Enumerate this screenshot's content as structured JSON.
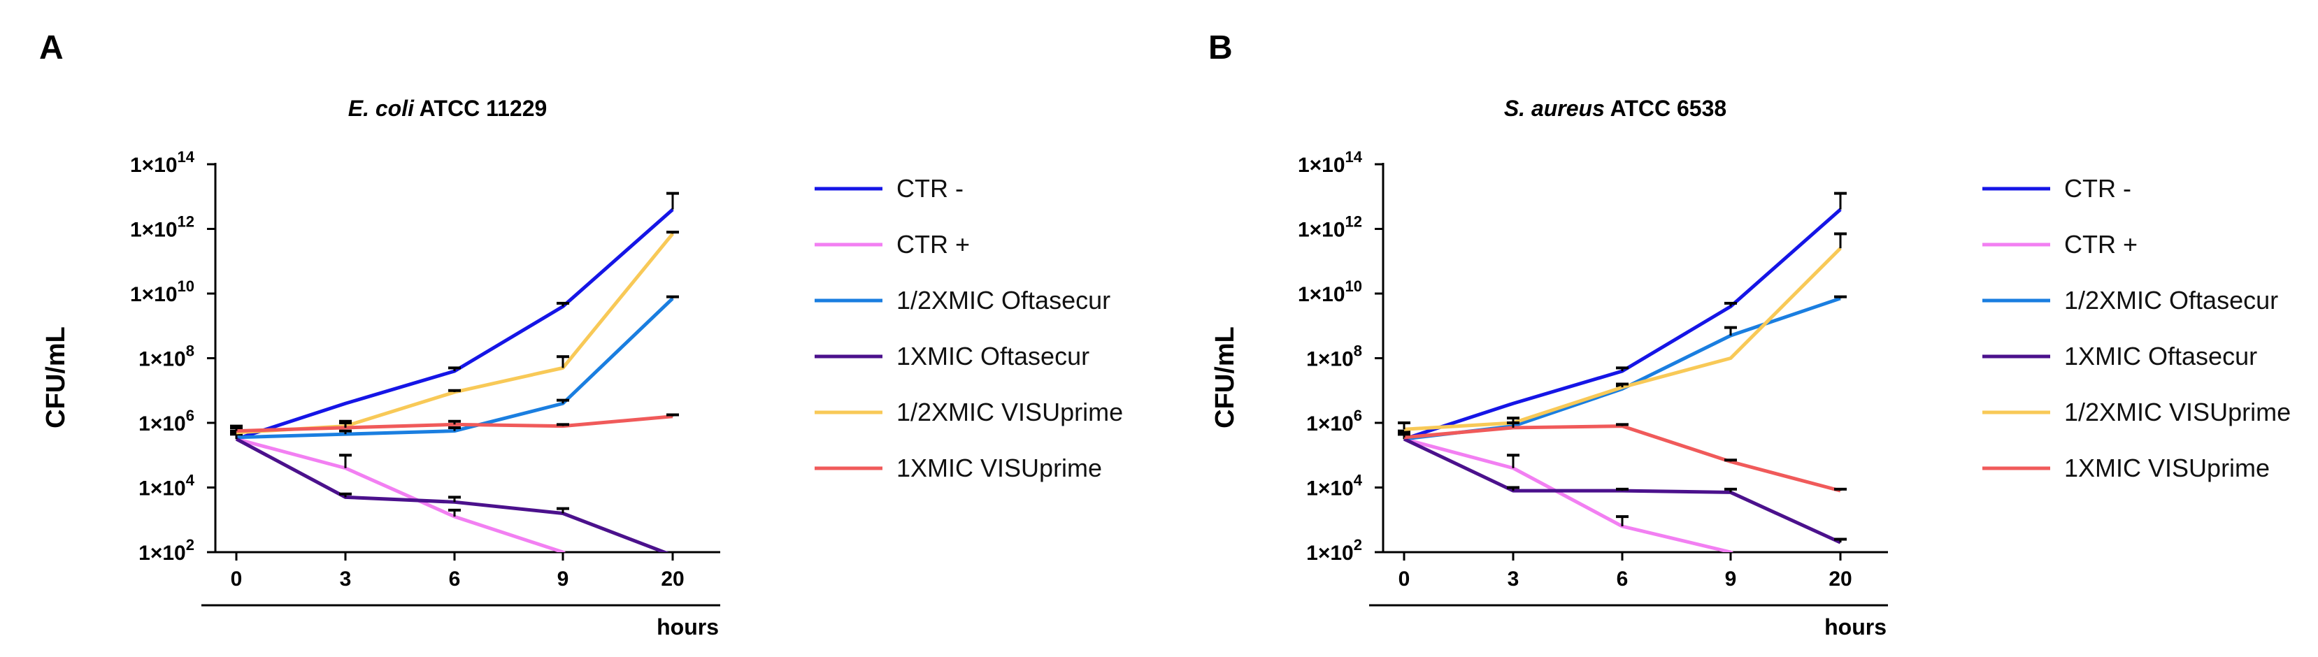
{
  "chart_data": [
    {
      "panel": "A",
      "type": "line",
      "title_italic": "E. coli",
      "title_rest": " ATCC 11229",
      "ylabel": "CFU/mL",
      "xlabel": "hours",
      "yscale": "log10",
      "ylim_exp": [
        2,
        14
      ],
      "yticks": [
        "1×10",
        "1×10",
        "1×10",
        "1×10",
        "1×10",
        "1×10",
        "1×10"
      ],
      "ytick_exps": [
        "2",
        "4",
        "6",
        "8",
        "10",
        "12",
        "14"
      ],
      "ytick_values": [
        2,
        4,
        6,
        8,
        10,
        12,
        14
      ],
      "categories": [
        "0",
        "3",
        "6",
        "9",
        "20"
      ],
      "series": [
        {
          "name": "CTR -",
          "color": "#1515e6",
          "log10": [
            5.5,
            6.6,
            7.6,
            9.6,
            12.6
          ],
          "err": [
            0.25,
            0,
            0.1,
            0.1,
            0.5
          ]
        },
        {
          "name": "CTR +",
          "color": "#f27ff2",
          "log10": [
            5.5,
            4.6,
            3.1,
            2.0,
            null
          ],
          "err": [
            0.2,
            0.4,
            0.2,
            0,
            0
          ]
        },
        {
          "name": "1/2XMIC Oftasecur",
          "color": "#1a7ee0",
          "log10": [
            5.55,
            5.65,
            5.75,
            6.6,
            9.85
          ],
          "err": [
            0.15,
            0.1,
            0.1,
            0.1,
            0.05
          ]
        },
        {
          "name": "1XMIC Oftasecur",
          "color": "#4b118c",
          "log10": [
            5.5,
            3.7,
            3.55,
            3.2,
            1.9
          ],
          "err": [
            0.15,
            0.1,
            0.15,
            0.15,
            0
          ]
        },
        {
          "name": "1/2XMIC VISUprime",
          "color": "#f8c957",
          "log10": [
            5.7,
            5.9,
            6.95,
            7.7,
            11.85
          ],
          "err": [
            0.2,
            0.15,
            0.05,
            0.35,
            0.05
          ]
        },
        {
          "name": "1XMIC VISUprime",
          "color": "#f05a5a",
          "log10": [
            5.75,
            5.85,
            5.95,
            5.9,
            6.2
          ],
          "err": [
            0.1,
            0.15,
            0.1,
            0.05,
            0.05
          ]
        }
      ]
    },
    {
      "panel": "B",
      "type": "line",
      "title_italic": "S. aureus",
      "title_rest": " ATCC 6538",
      "ylabel": "CFU/mL",
      "xlabel": "hours",
      "yscale": "log10",
      "ylim_exp": [
        2,
        14
      ],
      "yticks": [
        "1×10",
        "1×10",
        "1×10",
        "1×10",
        "1×10",
        "1×10",
        "1×10"
      ],
      "ytick_exps": [
        "2",
        "4",
        "6",
        "8",
        "10",
        "12",
        "14"
      ],
      "ytick_values": [
        2,
        4,
        6,
        8,
        10,
        12,
        14
      ],
      "categories": [
        "0",
        "3",
        "6",
        "9",
        "20"
      ],
      "series": [
        {
          "name": "CTR -",
          "color": "#1515e6",
          "log10": [
            5.5,
            6.6,
            7.6,
            9.6,
            12.6
          ],
          "err": [
            0.25,
            0,
            0.1,
            0.1,
            0.5
          ]
        },
        {
          "name": "CTR +",
          "color": "#f27ff2",
          "log10": [
            5.5,
            4.6,
            2.8,
            2.0,
            null
          ],
          "err": [
            0.2,
            0.4,
            0.3,
            0,
            0
          ]
        },
        {
          "name": "1/2XMIC Oftasecur",
          "color": "#1a7ee0",
          "log10": [
            5.5,
            5.9,
            7.05,
            8.7,
            9.85
          ],
          "err": [
            0.15,
            0.1,
            0.1,
            0.25,
            0.05
          ]
        },
        {
          "name": "1XMIC Oftasecur",
          "color": "#4b118c",
          "log10": [
            5.5,
            3.9,
            3.9,
            3.85,
            2.3
          ],
          "err": [
            0.15,
            0.1,
            0.05,
            0.1,
            0.1
          ]
        },
        {
          "name": "1/2XMIC VISUprime",
          "color": "#f8c957",
          "log10": [
            5.8,
            6.0,
            7.1,
            8.0,
            11.4
          ],
          "err": [
            0.2,
            0.15,
            0.1,
            0,
            0.45
          ]
        },
        {
          "name": "1XMIC VISUprime",
          "color": "#f05a5a",
          "log10": [
            5.55,
            5.85,
            5.9,
            4.8,
            3.9
          ],
          "err": [
            0.1,
            0.15,
            0.05,
            0.05,
            0.05
          ]
        }
      ]
    }
  ]
}
